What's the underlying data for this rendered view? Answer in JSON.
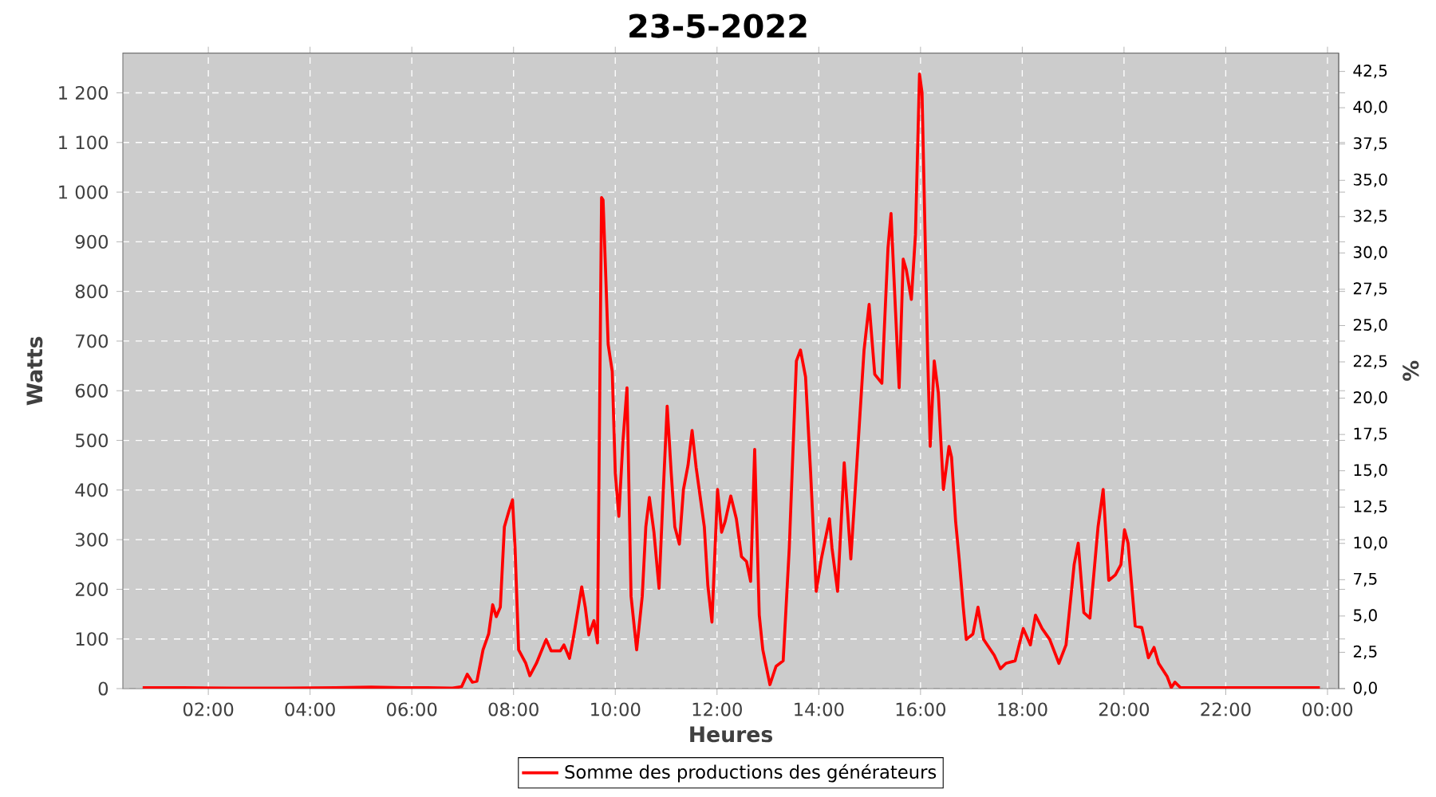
{
  "chart_data": {
    "type": "line",
    "title": "23-5-2022",
    "xlabel": "Heures",
    "ylabel": "Watts",
    "y2label": "%",
    "xlim": [
      0.32,
      24.22
    ],
    "ylim": [
      0,
      1280
    ],
    "y2lim": [
      0,
      43.76
    ],
    "xticks": [
      {
        "value": 2,
        "label": "02:00"
      },
      {
        "value": 4,
        "label": "04:00"
      },
      {
        "value": 6,
        "label": "06:00"
      },
      {
        "value": 8,
        "label": "08:00"
      },
      {
        "value": 10,
        "label": "10:00"
      },
      {
        "value": 12,
        "label": "12:00"
      },
      {
        "value": 14,
        "label": "14:00"
      },
      {
        "value": 16,
        "label": "16:00"
      },
      {
        "value": 18,
        "label": "18:00"
      },
      {
        "value": 20,
        "label": "20:00"
      },
      {
        "value": 22,
        "label": "22:00"
      },
      {
        "value": 24,
        "label": "00:00"
      }
    ],
    "yticks": [
      0,
      100,
      200,
      300,
      400,
      500,
      600,
      700,
      800,
      900,
      {
        "value": 1000,
        "label": "1 000"
      },
      {
        "value": 1100,
        "label": "1 100"
      },
      {
        "value": 1200,
        "label": "1 200"
      }
    ],
    "y2ticks": [
      {
        "value": 0,
        "label": "0,0"
      },
      {
        "value": 2.5,
        "label": "2,5"
      },
      {
        "value": 5,
        "label": "5,0"
      },
      {
        "value": 7.5,
        "label": "7,5"
      },
      {
        "value": 10,
        "label": "10,0"
      },
      {
        "value": 12.5,
        "label": "12,5"
      },
      {
        "value": 15,
        "label": "15,0"
      },
      {
        "value": 17.5,
        "label": "17,5"
      },
      {
        "value": 20,
        "label": "20,0"
      },
      {
        "value": 22.5,
        "label": "22,5"
      },
      {
        "value": 25,
        "label": "25,0"
      },
      {
        "value": 27.5,
        "label": "27,5"
      },
      {
        "value": 30,
        "label": "30,0"
      },
      {
        "value": 32.5,
        "label": "32,5"
      },
      {
        "value": 35,
        "label": "35,0"
      },
      {
        "value": 37.5,
        "label": "37,5"
      },
      {
        "value": 40,
        "label": "40,0"
      },
      {
        "value": 42.5,
        "label": "42,5"
      }
    ],
    "grid": true,
    "legend": "bottom",
    "marker": "none",
    "line_style": "solid",
    "series": [
      {
        "name": "Somme des productions des  générateurs",
        "color": "#ff0000",
        "x": [
          0.71,
          1.5,
          2.5,
          3.5,
          4.5,
          5.2,
          5.8,
          6.3,
          6.8,
          6.98,
          7.09,
          7.19,
          7.28,
          7.4,
          7.51,
          7.59,
          7.66,
          7.74,
          7.82,
          7.91,
          7.98,
          8.03,
          8.1,
          8.24,
          8.32,
          8.45,
          8.64,
          8.74,
          8.92,
          8.99,
          9.1,
          9.18,
          9.34,
          9.41,
          9.48,
          9.58,
          9.65,
          9.73,
          9.76,
          9.86,
          9.94,
          10.0,
          10.07,
          10.15,
          10.23,
          10.31,
          10.42,
          10.53,
          10.6,
          10.67,
          10.76,
          10.86,
          10.94,
          11.02,
          11.1,
          11.17,
          11.26,
          11.34,
          11.43,
          11.51,
          11.59,
          11.75,
          11.82,
          11.9,
          12.01,
          12.09,
          12.16,
          12.27,
          12.38,
          12.48,
          12.58,
          12.66,
          12.74,
          12.83,
          12.9,
          13.04,
          13.16,
          13.3,
          13.42,
          13.56,
          13.64,
          13.74,
          13.84,
          13.95,
          14.05,
          14.21,
          14.26,
          14.37,
          14.5,
          14.63,
          14.75,
          14.89,
          14.99,
          15.1,
          15.24,
          15.36,
          15.42,
          15.51,
          15.58,
          15.66,
          15.72,
          15.82,
          15.9,
          15.98,
          16.03,
          16.14,
          16.19,
          16.27,
          16.35,
          16.45,
          16.56,
          16.61,
          16.69,
          16.76,
          16.84,
          16.9,
          17.03,
          17.13,
          17.24,
          17.45,
          17.57,
          17.68,
          17.86,
          18.02,
          18.16,
          18.26,
          18.39,
          18.54,
          18.72,
          18.86,
          19.02,
          19.1,
          19.21,
          19.33,
          19.49,
          19.59,
          19.7,
          19.83,
          19.94,
          20.01,
          20.08,
          20.22,
          20.35,
          20.48,
          20.59,
          20.68,
          20.85,
          20.93,
          21.0,
          21.11,
          22.0,
          23.0,
          23.85
        ],
        "values": [
          2,
          2,
          1,
          1,
          2,
          3,
          2,
          2,
          1,
          4,
          29,
          13,
          15,
          78,
          110,
          169,
          145,
          164,
          326,
          358,
          380,
          283,
          78,
          51,
          26,
          51,
          99,
          76,
          76,
          88,
          61,
          105,
          205,
          164,
          108,
          137,
          92,
          989,
          984,
          693,
          639,
          434,
          347,
          498,
          606,
          186,
          78,
          186,
          326,
          385,
          315,
          202,
          391,
          569,
          434,
          326,
          291,
          401,
          450,
          520,
          445,
          326,
          207,
          134,
          401,
          315,
          337,
          388,
          342,
          266,
          256,
          216,
          482,
          148,
          78,
          8,
          45,
          56,
          283,
          660,
          682,
          628,
          434,
          196,
          261,
          342,
          283,
          196,
          455,
          261,
          455,
          682,
          774,
          633,
          615,
          887,
          957,
          757,
          606,
          865,
          844,
          784,
          914,
          1238,
          1200,
          671,
          488,
          660,
          596,
          401,
          488,
          466,
          337,
          261,
          164,
          99,
          110,
          164,
          99,
          67,
          40,
          51,
          56,
          121,
          88,
          148,
          121,
          99,
          51,
          88,
          250,
          293,
          153,
          142,
          326,
          401,
          218,
          229,
          250,
          320,
          293,
          126,
          123,
          62,
          83,
          51,
          24,
          2,
          13,
          2,
          2,
          2,
          2
        ]
      }
    ]
  }
}
